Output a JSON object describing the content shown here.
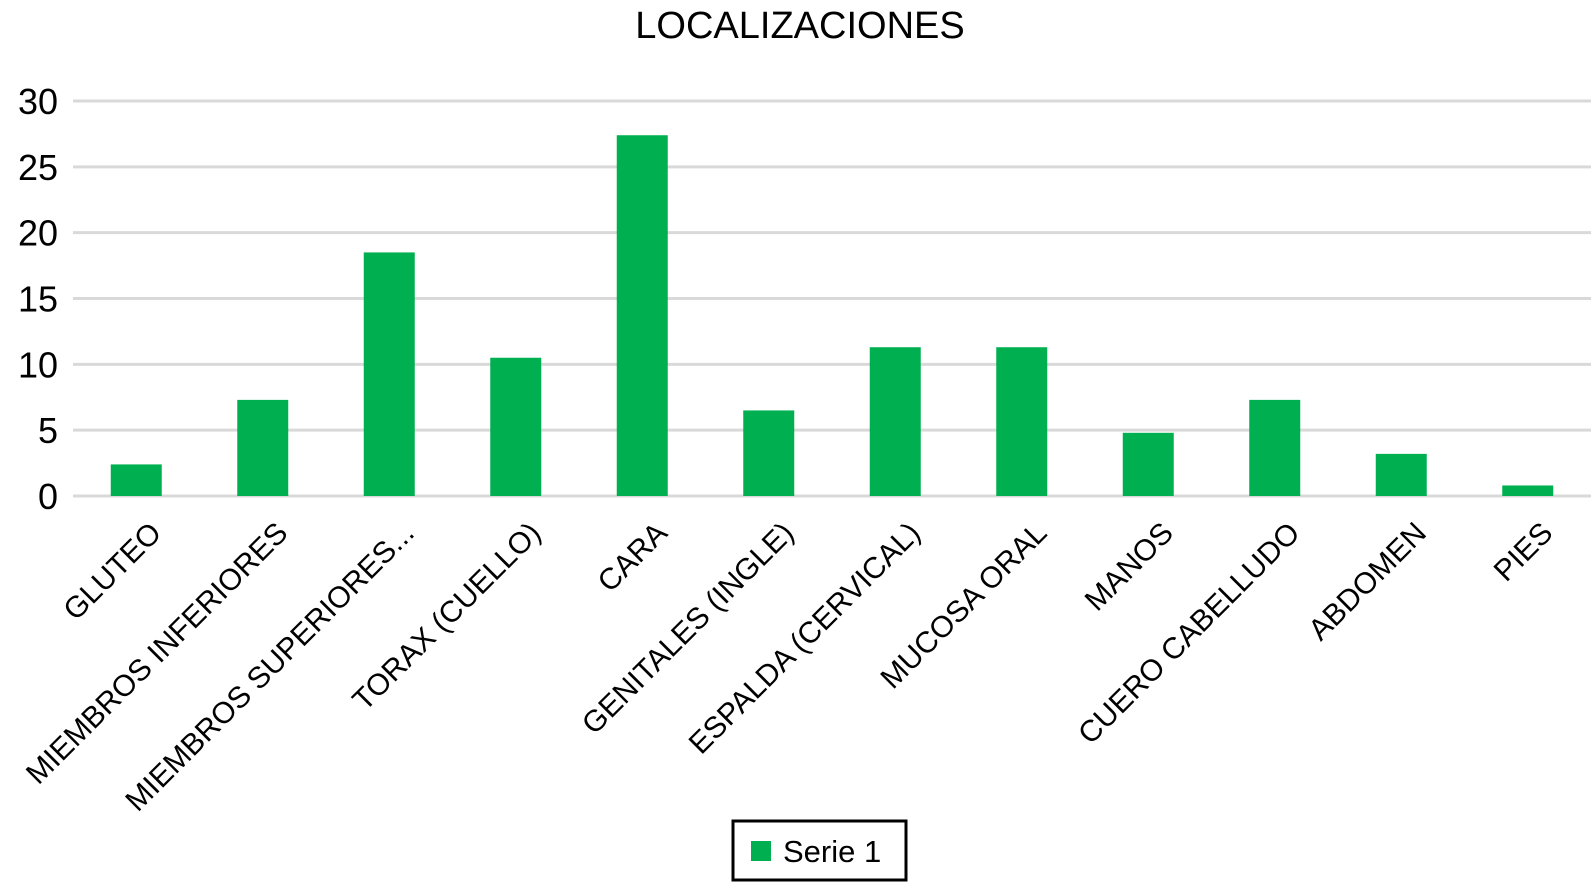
{
  "chart_data": {
    "type": "bar",
    "title": "LOCALIZACIONES",
    "xlabel": "",
    "ylabel": "",
    "categories": [
      "GLUTEO",
      "MIEMBROS INFERIORES",
      "MIEMBROS SUPERIORES...",
      "TORAX (CUELLO)",
      "CARA",
      "GENITALES (INGLE)",
      "ESPALDA (CERVICAL)",
      "MUCOSA ORAL",
      "MANOS",
      "CUERO CABELLUDO",
      "ABDOMEN",
      "PIES"
    ],
    "series": [
      {
        "name": "Serie 1",
        "color": "#00b050",
        "values": [
          2.4,
          7.3,
          18.5,
          10.5,
          27.4,
          6.5,
          11.3,
          11.3,
          4.8,
          7.3,
          3.2,
          0.8
        ]
      }
    ],
    "ylim": [
      0,
      30
    ],
    "yticks": [
      "0",
      "5",
      "10",
      "15",
      "20",
      "25",
      "30"
    ],
    "grid": true,
    "legend_position": "bottom"
  }
}
